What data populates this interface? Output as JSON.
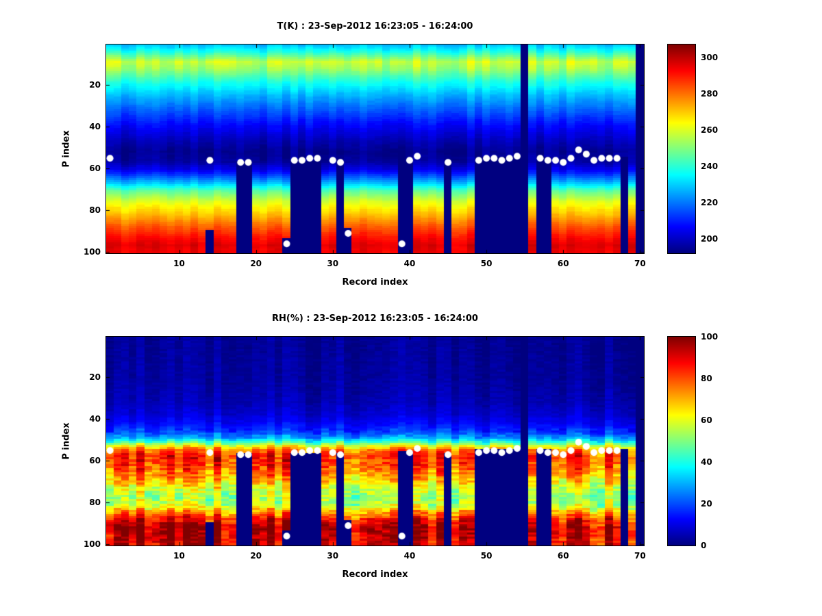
{
  "figure": {
    "background_color": "#ffffff",
    "time_range_label": "23-Sep-2012 16:23:05 - 16:24:00"
  },
  "chart_data": [
    {
      "type": "heatmap",
      "title": "T(K) : 23-Sep-2012 16:23:05 - 16:24:00",
      "xlabel": "Record index",
      "ylabel": "P index",
      "units": "K",
      "x_range": [
        1,
        70
      ],
      "y_range": [
        1,
        100
      ],
      "x_ticks": [
        10,
        20,
        30,
        40,
        50,
        60,
        70
      ],
      "y_ticks": [
        20,
        40,
        60,
        80,
        100
      ],
      "colormap": "jet",
      "color_range": [
        192,
        307
      ],
      "colorbar_ticks": [
        200,
        220,
        240,
        260,
        280,
        300
      ],
      "vertical_profile": {
        "p": [
          1,
          4,
          9,
          13,
          18,
          25,
          32,
          40,
          47,
          52,
          57,
          60,
          63,
          67,
          71,
          76,
          82,
          88,
          93,
          97,
          100
        ],
        "value": [
          228,
          236,
          254,
          249,
          239,
          227,
          217,
          206,
          198,
          194,
          196,
          203,
          213,
          228,
          246,
          260,
          271,
          283,
          291,
          296,
          294
        ]
      },
      "column_variability": 3,
      "warm_band": {
        "center_p": 9,
        "width_p": 5,
        "max_boost": 8
      },
      "missing_data_gaps": [
        {
          "from_record": 14,
          "to_record": 14,
          "from_p": 90
        },
        {
          "from_record": 18,
          "to_record": 19,
          "from_p": 57
        },
        {
          "from_record": 24,
          "to_record": 24,
          "from_p": 94
        },
        {
          "from_record": 25,
          "to_record": 28,
          "from_p": 57
        },
        {
          "from_record": 31,
          "to_record": 31,
          "from_p": 57
        },
        {
          "from_record": 32,
          "to_record": 32,
          "from_p": 89
        },
        {
          "from_record": 39,
          "to_record": 40,
          "from_p": 56
        },
        {
          "from_record": 45,
          "to_record": 45,
          "from_p": 57
        },
        {
          "from_record": 49,
          "to_record": 54,
          "from_p": 55
        },
        {
          "from_record": 55,
          "to_record": 55,
          "from_p": 1
        },
        {
          "from_record": 57,
          "to_record": 58,
          "from_p": 55
        },
        {
          "from_record": 68,
          "to_record": 68,
          "from_p": 55
        },
        {
          "from_record": 70,
          "to_record": 70,
          "from_p": 1
        }
      ],
      "white_markers": [
        [
          1,
          55
        ],
        [
          14,
          56
        ],
        [
          18,
          57
        ],
        [
          19,
          57
        ],
        [
          24,
          96
        ],
        [
          25,
          56
        ],
        [
          26,
          56
        ],
        [
          27,
          55
        ],
        [
          28,
          55
        ],
        [
          30,
          56
        ],
        [
          31,
          57
        ],
        [
          32,
          91
        ],
        [
          39,
          96
        ],
        [
          40,
          56
        ],
        [
          41,
          54
        ],
        [
          45,
          57
        ],
        [
          49,
          56
        ],
        [
          50,
          55
        ],
        [
          51,
          55
        ],
        [
          52,
          56
        ],
        [
          53,
          55
        ],
        [
          54,
          54
        ],
        [
          57,
          55
        ],
        [
          58,
          56
        ],
        [
          59,
          56
        ],
        [
          60,
          57
        ],
        [
          61,
          55
        ],
        [
          62,
          51
        ],
        [
          63,
          53
        ],
        [
          64,
          56
        ],
        [
          65,
          55
        ],
        [
          66,
          55
        ],
        [
          67,
          55
        ]
      ]
    },
    {
      "type": "heatmap",
      "title": "RH(%) : 23-Sep-2012 16:23:05 - 16:24:00",
      "xlabel": "Record index",
      "ylabel": "P index",
      "units": "%",
      "x_range": [
        1,
        70
      ],
      "y_range": [
        1,
        100
      ],
      "x_ticks": [
        10,
        20,
        30,
        40,
        50,
        60,
        70
      ],
      "y_ticks": [
        20,
        40,
        60,
        80,
        100
      ],
      "colormap": "jet",
      "color_range": [
        0,
        100
      ],
      "colorbar_ticks": [
        0,
        20,
        40,
        60,
        80,
        100
      ],
      "vertical_profile": {
        "p": [
          1,
          20,
          32,
          38,
          42,
          46,
          49,
          51,
          53,
          55,
          58,
          62,
          66,
          70,
          74,
          78,
          81,
          84,
          88,
          92,
          96,
          100
        ],
        "value": [
          2,
          3,
          5,
          8,
          12,
          18,
          28,
          42,
          60,
          75,
          83,
          80,
          74,
          66,
          57,
          52,
          56,
          68,
          85,
          95,
          92,
          90
        ]
      },
      "column_variability": 8,
      "missing_data_gaps": [
        {
          "from_record": 14,
          "to_record": 14,
          "from_p": 90
        },
        {
          "from_record": 18,
          "to_record": 19,
          "from_p": 57
        },
        {
          "from_record": 24,
          "to_record": 24,
          "from_p": 94
        },
        {
          "from_record": 25,
          "to_record": 28,
          "from_p": 57
        },
        {
          "from_record": 31,
          "to_record": 31,
          "from_p": 57
        },
        {
          "from_record": 32,
          "to_record": 32,
          "from_p": 89
        },
        {
          "from_record": 39,
          "to_record": 40,
          "from_p": 56
        },
        {
          "from_record": 45,
          "to_record": 45,
          "from_p": 57
        },
        {
          "from_record": 49,
          "to_record": 54,
          "from_p": 55
        },
        {
          "from_record": 55,
          "to_record": 55,
          "from_p": 1
        },
        {
          "from_record": 57,
          "to_record": 58,
          "from_p": 55
        },
        {
          "from_record": 68,
          "to_record": 68,
          "from_p": 55
        },
        {
          "from_record": 70,
          "to_record": 70,
          "from_p": 1
        }
      ],
      "white_markers": [
        [
          1,
          55
        ],
        [
          14,
          56
        ],
        [
          18,
          57
        ],
        [
          19,
          57
        ],
        [
          24,
          96
        ],
        [
          25,
          56
        ],
        [
          26,
          56
        ],
        [
          27,
          55
        ],
        [
          28,
          55
        ],
        [
          30,
          56
        ],
        [
          31,
          57
        ],
        [
          32,
          91
        ],
        [
          39,
          96
        ],
        [
          40,
          56
        ],
        [
          41,
          54
        ],
        [
          45,
          57
        ],
        [
          49,
          56
        ],
        [
          50,
          55
        ],
        [
          51,
          55
        ],
        [
          52,
          56
        ],
        [
          53,
          55
        ],
        [
          54,
          54
        ],
        [
          57,
          55
        ],
        [
          58,
          56
        ],
        [
          59,
          56
        ],
        [
          60,
          57
        ],
        [
          61,
          55
        ],
        [
          62,
          51
        ],
        [
          63,
          53
        ],
        [
          64,
          56
        ],
        [
          65,
          55
        ],
        [
          66,
          55
        ],
        [
          67,
          55
        ]
      ]
    }
  ]
}
